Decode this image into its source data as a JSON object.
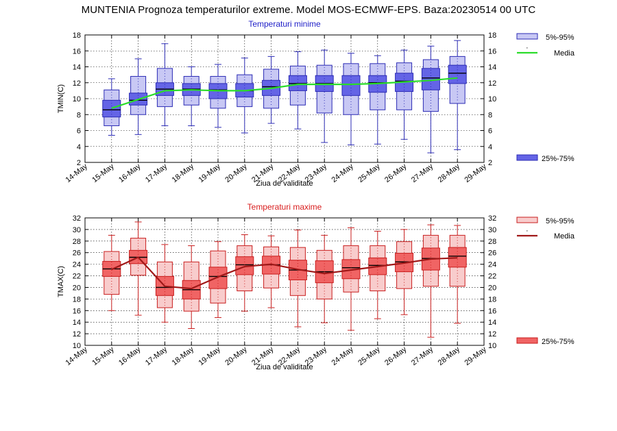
{
  "title": "MUNTENIA  Prognoza temperaturilor extreme.  Model MOS-ECMWF-EPS. Baza:20230514 00 UTC",
  "chart_data": [
    {
      "type": "box",
      "id": "tmin",
      "title": "Temperaturi minime",
      "title_color": "#2020c8",
      "ylabel": "TMIN(C)",
      "xlabel": "Ziua de validitate",
      "ylim": [
        2,
        18
      ],
      "yticks": [
        2,
        4,
        6,
        8,
        10,
        12,
        14,
        16,
        18
      ],
      "categories": [
        "14-May",
        "15-May",
        "16-May",
        "17-May",
        "18-May",
        "19-May",
        "20-May",
        "21-May",
        "22-May",
        "23-May",
        "24-May",
        "25-May",
        "26-May",
        "27-May",
        "28-May",
        "29-May"
      ],
      "grid": true,
      "colors": {
        "box95": "#c8c8f4",
        "box75": "#6464e6",
        "stroke": "#2a2ab4",
        "median": "#000000",
        "mean": "#2adc2a"
      },
      "legend": {
        "p5_95": "5%-95%",
        "dot": "·",
        "mean": "Media",
        "p25_75": "25%-75%"
      },
      "boxes": [
        {
          "day": "15-May",
          "min": 5.4,
          "p5": 6.6,
          "p25": 7.7,
          "median": 8.6,
          "p75": 9.8,
          "p95": 11.1,
          "max": 12.5,
          "mean": 8.8
        },
        {
          "day": "16-May",
          "min": 5.5,
          "p5": 8.0,
          "p25": 9.2,
          "median": 9.8,
          "p75": 10.7,
          "p95": 12.8,
          "max": 15.0,
          "mean": 9.9
        },
        {
          "day": "17-May",
          "min": 6.6,
          "p5": 9.0,
          "p25": 10.4,
          "median": 11.2,
          "p75": 12.0,
          "p95": 13.8,
          "max": 16.9,
          "mean": 11.0
        },
        {
          "day": "18-May",
          "min": 6.6,
          "p5": 9.2,
          "p25": 10.4,
          "median": 11.2,
          "p75": 11.9,
          "p95": 12.8,
          "max": 14.0,
          "mean": 11.1
        },
        {
          "day": "19-May",
          "min": 6.4,
          "p5": 8.8,
          "p25": 10.0,
          "median": 11.1,
          "p75": 11.9,
          "p95": 12.8,
          "max": 14.3,
          "mean": 11.0
        },
        {
          "day": "20-May",
          "min": 5.7,
          "p5": 9.0,
          "p25": 10.2,
          "median": 11.0,
          "p75": 11.9,
          "p95": 13.0,
          "max": 15.1,
          "mean": 11.0
        },
        {
          "day": "21-May",
          "min": 6.9,
          "p5": 8.8,
          "p25": 10.4,
          "median": 11.5,
          "p75": 12.3,
          "p95": 13.7,
          "max": 15.3,
          "mean": 11.3
        },
        {
          "day": "22-May",
          "min": 6.2,
          "p5": 9.2,
          "p25": 11.0,
          "median": 11.9,
          "p75": 12.9,
          "p95": 14.1,
          "max": 15.9,
          "mean": 11.8
        },
        {
          "day": "23-May",
          "min": 4.5,
          "p5": 8.2,
          "p25": 10.9,
          "median": 11.9,
          "p75": 12.9,
          "p95": 14.2,
          "max": 16.1,
          "mean": 11.8
        },
        {
          "day": "24-May",
          "min": 4.2,
          "p5": 8.0,
          "p25": 10.4,
          "median": 11.8,
          "p75": 12.9,
          "p95": 14.4,
          "max": 15.7,
          "mean": 11.8
        },
        {
          "day": "25-May",
          "min": 4.3,
          "p5": 8.6,
          "p25": 10.8,
          "median": 12.0,
          "p75": 12.9,
          "p95": 14.4,
          "max": 15.4,
          "mean": 11.9
        },
        {
          "day": "26-May",
          "min": 4.9,
          "p5": 8.6,
          "p25": 10.9,
          "median": 12.2,
          "p75": 13.2,
          "p95": 14.5,
          "max": 16.1,
          "mean": 12.1
        },
        {
          "day": "27-May",
          "min": 3.2,
          "p5": 8.4,
          "p25": 11.1,
          "median": 12.6,
          "p75": 13.8,
          "p95": 14.9,
          "max": 16.6,
          "mean": 12.3
        },
        {
          "day": "28-May",
          "min": 3.6,
          "p5": 9.4,
          "p25": 11.9,
          "median": 13.2,
          "p75": 14.2,
          "p95": 15.3,
          "max": 17.3,
          "mean": 12.6
        }
      ]
    },
    {
      "type": "box",
      "id": "tmax",
      "title": "Temperaturi maxime",
      "title_color": "#d81c1c",
      "ylabel": "TMAX(C)",
      "xlabel": "Ziua de validitate",
      "ylim": [
        10,
        32
      ],
      "yticks": [
        10,
        12,
        14,
        16,
        18,
        20,
        22,
        24,
        26,
        28,
        30,
        32
      ],
      "categories": [
        "14-May",
        "15-May",
        "16-May",
        "17-May",
        "18-May",
        "19-May",
        "20-May",
        "21-May",
        "22-May",
        "23-May",
        "24-May",
        "25-May",
        "26-May",
        "27-May",
        "28-May",
        "29-May"
      ],
      "grid": true,
      "colors": {
        "box95": "#f8cccc",
        "box75": "#f06464",
        "stroke": "#c81c1c",
        "median": "#000000",
        "mean": "#a01818"
      },
      "legend": {
        "p5_95": "5%-95%",
        "dot": "·",
        "mean": "Media",
        "p25_75": "25%-75%"
      },
      "boxes": [
        {
          "day": "15-May",
          "min": 16.0,
          "p5": 18.8,
          "p25": 21.9,
          "median": 23.2,
          "p75": 24.5,
          "p95": 26.2,
          "max": 29.0,
          "mean": 23.1
        },
        {
          "day": "16-May",
          "min": 15.2,
          "p5": 22.1,
          "p25": 24.1,
          "median": 25.2,
          "p75": 26.4,
          "p95": 28.5,
          "max": 31.3,
          "mean": 25.2
        },
        {
          "day": "17-May",
          "min": 14.0,
          "p5": 16.5,
          "p25": 18.6,
          "median": 20.0,
          "p75": 21.9,
          "p95": 24.4,
          "max": 27.4,
          "mean": 20.2
        },
        {
          "day": "18-May",
          "min": 12.9,
          "p5": 15.9,
          "p25": 18.0,
          "median": 19.6,
          "p75": 21.2,
          "p95": 24.4,
          "max": 27.2,
          "mean": 19.8
        },
        {
          "day": "19-May",
          "min": 14.8,
          "p5": 17.3,
          "p25": 19.8,
          "median": 21.9,
          "p75": 23.5,
          "p95": 26.3,
          "max": 27.9,
          "mean": 21.8
        },
        {
          "day": "20-May",
          "min": 15.9,
          "p5": 19.4,
          "p25": 22.2,
          "median": 23.9,
          "p75": 25.3,
          "p95": 27.2,
          "max": 29.1,
          "mean": 23.6
        },
        {
          "day": "21-May",
          "min": 16.5,
          "p5": 19.9,
          "p25": 22.3,
          "median": 23.9,
          "p75": 25.4,
          "p95": 27.0,
          "max": 28.9,
          "mean": 24.0
        },
        {
          "day": "22-May",
          "min": 13.2,
          "p5": 18.6,
          "p25": 21.3,
          "median": 23.0,
          "p75": 24.7,
          "p95": 26.9,
          "max": 29.9,
          "mean": 23.1
        },
        {
          "day": "23-May",
          "min": 13.9,
          "p5": 18.0,
          "p25": 20.8,
          "median": 22.7,
          "p75": 24.6,
          "p95": 26.4,
          "max": 29.0,
          "mean": 22.4
        },
        {
          "day": "24-May",
          "min": 12.6,
          "p5": 19.2,
          "p25": 21.5,
          "median": 23.4,
          "p75": 24.8,
          "p95": 27.2,
          "max": 30.3,
          "mean": 23.0
        },
        {
          "day": "25-May",
          "min": 14.6,
          "p5": 19.4,
          "p25": 22.2,
          "median": 23.8,
          "p75": 25.1,
          "p95": 27.2,
          "max": 29.7,
          "mean": 23.6
        },
        {
          "day": "26-May",
          "min": 15.3,
          "p5": 19.8,
          "p25": 22.7,
          "median": 24.4,
          "p75": 25.9,
          "p95": 27.9,
          "max": 30.0,
          "mean": 24.2
        },
        {
          "day": "27-May",
          "min": 11.4,
          "p5": 20.2,
          "p25": 23.0,
          "median": 25.0,
          "p75": 26.8,
          "p95": 29.0,
          "max": 30.8,
          "mean": 24.9
        },
        {
          "day": "28-May",
          "min": 13.8,
          "p5": 20.2,
          "p25": 23.5,
          "median": 25.4,
          "p75": 26.9,
          "p95": 29.0,
          "max": 30.7,
          "mean": 25.1
        }
      ]
    }
  ]
}
